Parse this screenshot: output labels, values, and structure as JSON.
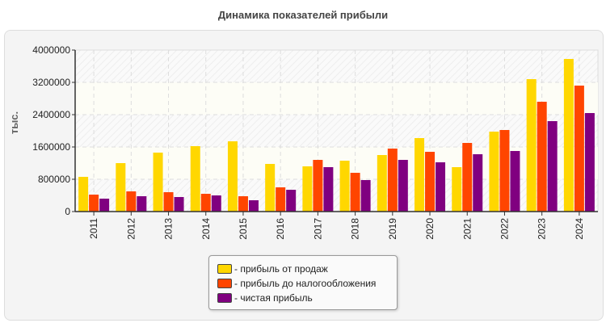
{
  "chart_data": {
    "type": "bar",
    "title": "Динамика показателей прибыли",
    "ylabel": "тыс.",
    "xlabel": "",
    "ylim": [
      0,
      4000000
    ],
    "yticks": [
      "0",
      "800000",
      "1600000",
      "2400000",
      "3200000",
      "4000000"
    ],
    "grid": true,
    "legend_position": "bottom",
    "categories": [
      "2011",
      "2012",
      "2013",
      "2014",
      "2015",
      "2016",
      "2017",
      "2018",
      "2019",
      "2020",
      "2021",
      "2022",
      "2023",
      "2024"
    ],
    "series": [
      {
        "name": "- прибыль от продаж",
        "color": "#FFD700",
        "values": [
          860000,
          1200000,
          1460000,
          1620000,
          1740000,
          1180000,
          1120000,
          1260000,
          1400000,
          1820000,
          1100000,
          1980000,
          3280000,
          3780000
        ]
      },
      {
        "name": "- прибыль до налогообложения",
        "color": "#FF4500",
        "values": [
          420000,
          500000,
          480000,
          440000,
          380000,
          600000,
          1280000,
          960000,
          1560000,
          1480000,
          1700000,
          2020000,
          2720000,
          3120000
        ]
      },
      {
        "name": "- чистая прибыль",
        "color": "#800080",
        "values": [
          320000,
          380000,
          360000,
          400000,
          280000,
          540000,
          1100000,
          780000,
          1280000,
          1220000,
          1420000,
          1500000,
          2240000,
          2440000
        ]
      }
    ]
  }
}
